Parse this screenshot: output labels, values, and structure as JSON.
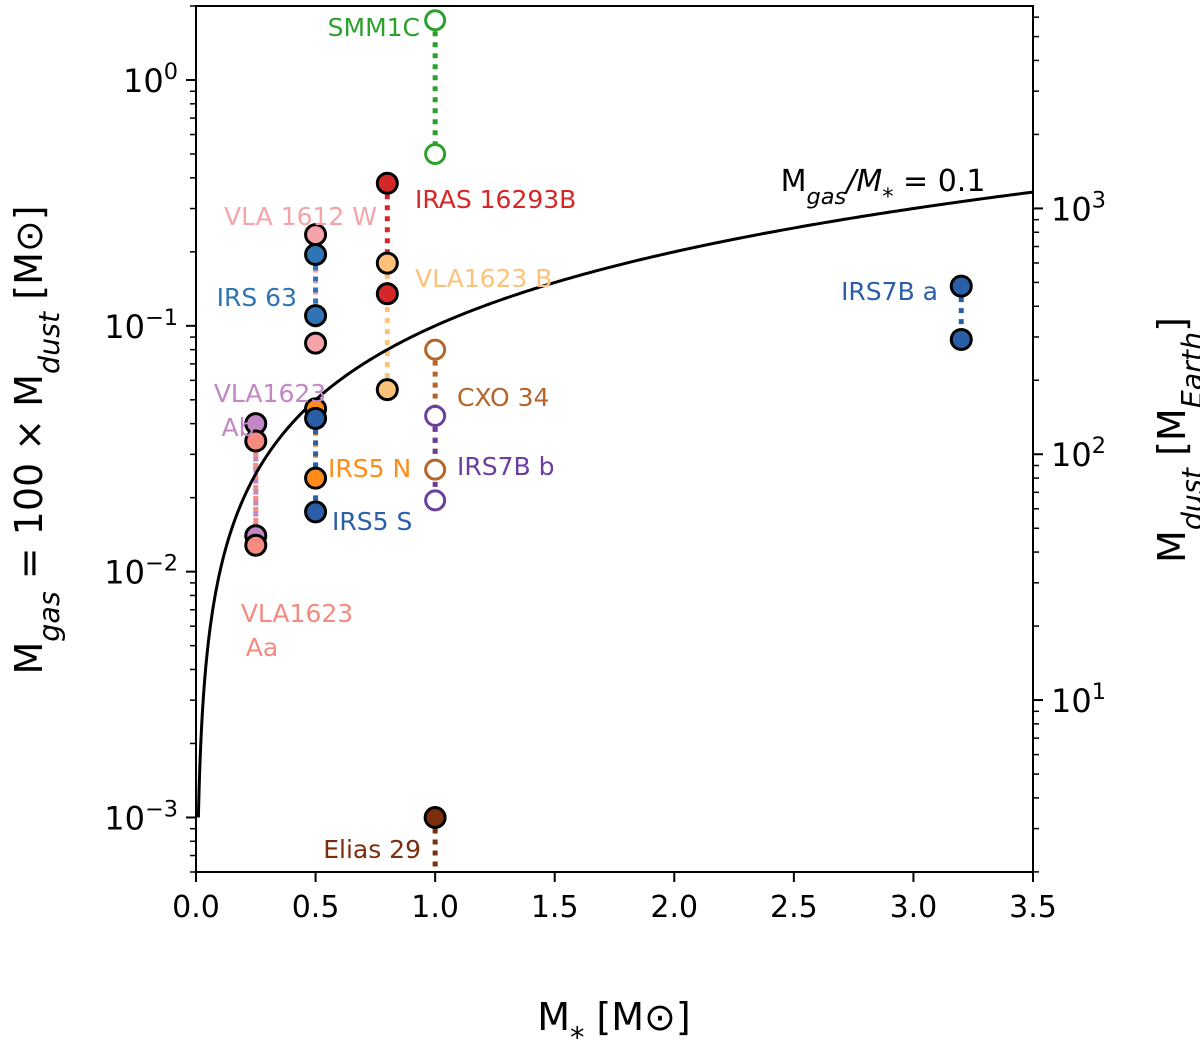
{
  "chart_data": {
    "type": "scatter",
    "title": "",
    "xlabel": "M* [M⊙]",
    "ylabel": "Mgas = 100 × Mdust [M⊙]",
    "ylabel_right": "Mdust [MEarth]",
    "xlim": [
      0.0,
      3.5
    ],
    "ylim": [
      0.0006,
      2.0
    ],
    "yscale": "log",
    "x_ticks": [
      "0.0",
      "0.5",
      "1.0",
      "1.5",
      "2.0",
      "2.5",
      "3.0",
      "3.5"
    ],
    "y_ticks": [
      {
        "value": 0.001,
        "base": "10",
        "exp": "−3"
      },
      {
        "value": 0.01,
        "base": "10",
        "exp": "−2"
      },
      {
        "value": 0.1,
        "base": "10",
        "exp": "−1"
      },
      {
        "value": 1.0,
        "base": "10",
        "exp": "0"
      }
    ],
    "y2_ticks": [
      {
        "value": 10,
        "base": "10",
        "exp": "1"
      },
      {
        "value": 100,
        "base": "10",
        "exp": "2"
      },
      {
        "value": 1000,
        "base": "10",
        "exp": "3"
      }
    ],
    "grid": false,
    "curve": {
      "label": "Mgas/M* = 0.1",
      "ratio": 0.1,
      "color": "#000000"
    },
    "sources": [
      {
        "label": "SMM1C",
        "color": "#2ca02c",
        "open": true,
        "x": 1.0,
        "points": [
          1.75,
          0.5
        ]
      },
      {
        "label": "IRAS 16293B",
        "color": "#d62728",
        "open": false,
        "x": 0.8,
        "points": [
          0.38,
          0.135
        ]
      },
      {
        "label": "VLA 1612 W",
        "color": "#f4a3a8",
        "open": false,
        "x": 0.5,
        "points": [
          0.235,
          0.085
        ]
      },
      {
        "label": "IRS 63",
        "color": "#2f74b5",
        "open": false,
        "x": 0.5,
        "points": [
          0.195,
          0.11
        ]
      },
      {
        "label": "VLA1623 B",
        "color": "#fdc27a",
        "open": false,
        "x": 0.8,
        "points": [
          0.18,
          0.055
        ]
      },
      {
        "label": "IRS7B a",
        "color": "#2a5fa8",
        "open": false,
        "x": 3.2,
        "points": [
          0.145,
          0.088
        ]
      },
      {
        "label": "CXO 34",
        "color": "#b5652a",
        "open": true,
        "x": 1.0,
        "points": [
          0.08,
          0.026
        ]
      },
      {
        "label": "VLA1623 Ab",
        "color": "#c387c5",
        "open": false,
        "x": 0.25,
        "points": [
          0.04,
          0.014
        ]
      },
      {
        "label": "IRS5 N",
        "color": "#ff8c1a",
        "open": false,
        "x": 0.5,
        "points": [
          0.046,
          0.024
        ]
      },
      {
        "label": "IRS5 S",
        "color": "#2a5fa8",
        "open": false,
        "x": 0.5,
        "points": [
          0.042,
          0.0175
        ]
      },
      {
        "label": "IRS7B b",
        "color": "#6b3fa0",
        "open": true,
        "x": 1.0,
        "points": [
          0.043,
          0.0195
        ]
      },
      {
        "label": "VLA1623 Aa",
        "color": "#f58b80",
        "open": false,
        "x": 0.25,
        "points": [
          0.034,
          0.0128
        ]
      },
      {
        "label": "Elias 29",
        "color": "#7a2e0e",
        "open": false,
        "x": 1.0,
        "points": [
          0.001,
          0.0006
        ]
      }
    ]
  }
}
